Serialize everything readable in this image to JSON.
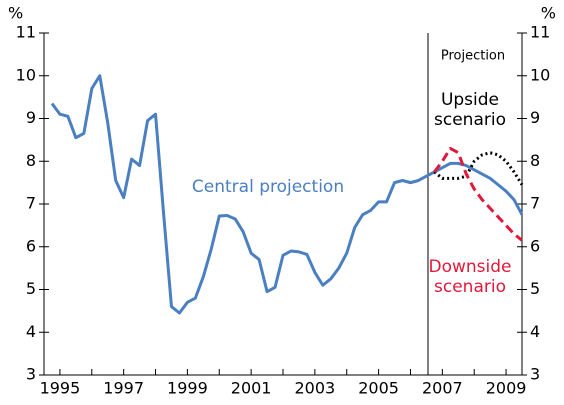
{
  "chart_data": {
    "type": "line",
    "y_unit": "%",
    "y2_unit": "%",
    "x": [
      1994.75,
      1995,
      1995.25,
      1995.5,
      1995.75,
      1996,
      1996.25,
      1996.5,
      1996.75,
      1997,
      1997.25,
      1997.5,
      1997.75,
      1998,
      1998.25,
      1998.5,
      1998.75,
      1999,
      1999.25,
      1999.5,
      1999.75,
      2000,
      2000.25,
      2000.5,
      2000.75,
      2001,
      2001.25,
      2001.5,
      2001.75,
      2002,
      2002.25,
      2002.5,
      2002.75,
      2003,
      2003.25,
      2003.5,
      2003.75,
      2004,
      2004.25,
      2004.5,
      2004.75,
      2005,
      2005.25,
      2005.5,
      2005.75,
      2006,
      2006.25,
      2006.5,
      2006.75,
      2007,
      2007.25,
      2007.5,
      2007.75,
      2008,
      2008.25,
      2008.5,
      2008.75,
      2009,
      2009.25,
      2009.5
    ],
    "series": [
      {
        "name": "Central projection",
        "color": "#4a7fc1",
        "style": "solid",
        "values": [
          9.35,
          9.1,
          9.05,
          8.55,
          8.65,
          9.7,
          10.0,
          8.9,
          7.55,
          7.15,
          8.05,
          7.9,
          8.95,
          9.1,
          6.8,
          4.6,
          4.45,
          4.7,
          4.8,
          5.3,
          5.95,
          6.72,
          6.73,
          6.65,
          6.35,
          5.85,
          5.7,
          4.95,
          5.05,
          5.8,
          5.9,
          5.88,
          5.82,
          5.4,
          5.1,
          5.25,
          5.5,
          5.85,
          6.45,
          6.75,
          6.85,
          7.05,
          7.05,
          7.5,
          7.55,
          7.5,
          7.55,
          7.65,
          7.75,
          7.85,
          7.95,
          7.95,
          7.9,
          7.8,
          7.7,
          7.6,
          7.45,
          7.3,
          7.1,
          6.75
        ]
      },
      {
        "name": "Upside scenario",
        "color": "#000000",
        "style": "dotted",
        "values": [
          null,
          null,
          null,
          null,
          null,
          null,
          null,
          null,
          null,
          null,
          null,
          null,
          null,
          null,
          null,
          null,
          null,
          null,
          null,
          null,
          null,
          null,
          null,
          null,
          null,
          null,
          null,
          null,
          null,
          null,
          null,
          null,
          null,
          null,
          null,
          null,
          null,
          null,
          null,
          null,
          null,
          null,
          null,
          null,
          null,
          null,
          null,
          null,
          7.75,
          7.6,
          7.6,
          7.6,
          7.65,
          8.0,
          8.15,
          8.2,
          8.15,
          8.0,
          7.75,
          7.45
        ]
      },
      {
        "name": "Downside scenario",
        "color": "#e0193a",
        "style": "dashed",
        "values": [
          null,
          null,
          null,
          null,
          null,
          null,
          null,
          null,
          null,
          null,
          null,
          null,
          null,
          null,
          null,
          null,
          null,
          null,
          null,
          null,
          null,
          null,
          null,
          null,
          null,
          null,
          null,
          null,
          null,
          null,
          null,
          null,
          null,
          null,
          null,
          null,
          null,
          null,
          null,
          null,
          null,
          null,
          null,
          null,
          null,
          null,
          null,
          null,
          7.75,
          8.0,
          8.3,
          8.2,
          7.7,
          7.35,
          7.1,
          6.9,
          6.7,
          6.5,
          6.3,
          6.15
        ]
      }
    ],
    "annotations": [
      {
        "lines": [
          "Projection"
        ]
      },
      {
        "lines": [
          "Upside",
          "scenario"
        ]
      },
      {
        "lines": [
          "Central projection"
        ]
      },
      {
        "lines": [
          "Downside",
          "scenario"
        ]
      }
    ],
    "projection_x": 2006.55,
    "xlim": [
      1994.5,
      2009.5
    ],
    "xticks": [
      1995,
      1997,
      1999,
      2001,
      2003,
      2005,
      2007,
      2009
    ],
    "xminorticks": [
      1996,
      1998,
      2000,
      2002,
      2004,
      2006,
      2008
    ],
    "ylim": [
      3,
      11
    ],
    "yticks": [
      3,
      4,
      5,
      6,
      7,
      8,
      9,
      10,
      11
    ],
    "y2lim": [
      3,
      11
    ],
    "y2ticks": [
      3,
      4,
      5,
      6,
      7,
      8,
      9,
      10,
      11
    ]
  }
}
